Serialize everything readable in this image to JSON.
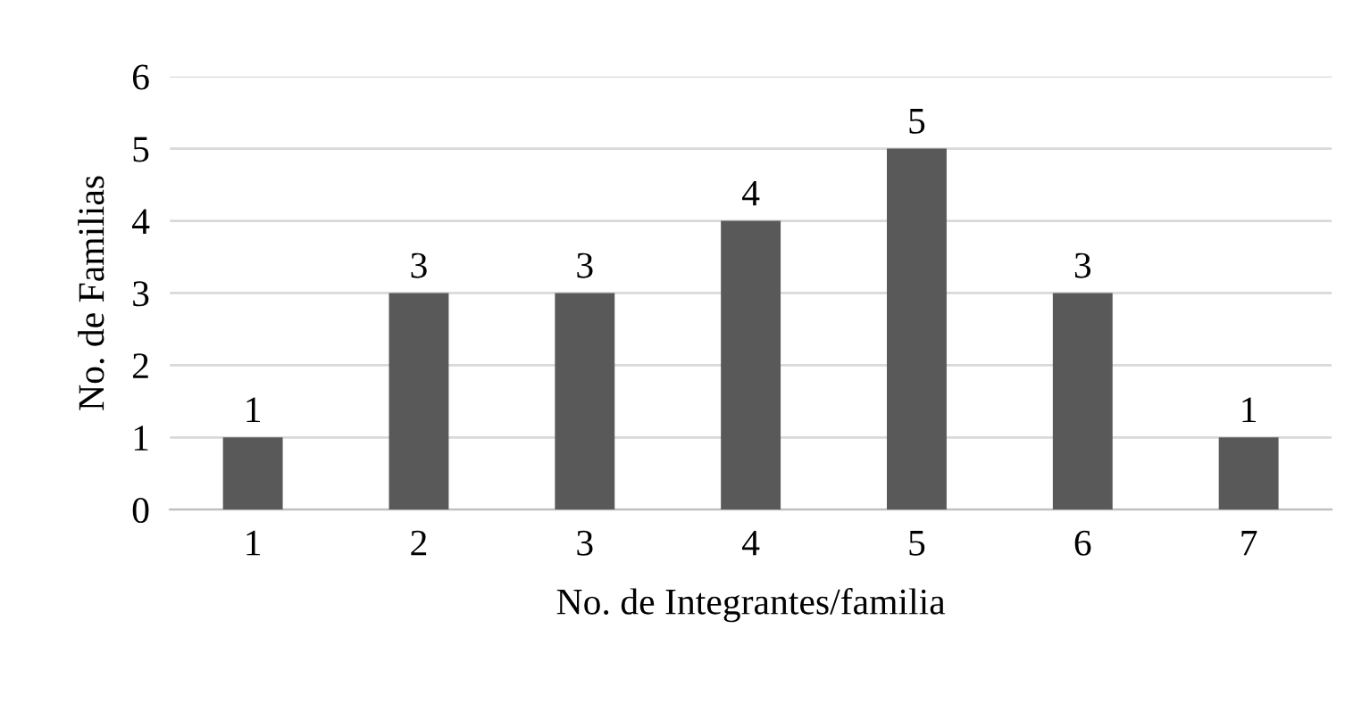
{
  "chart_data": {
    "type": "bar",
    "xlabel": "No. de Integrantes/familia",
    "ylabel": "No. de Familias",
    "categories": [
      "1",
      "2",
      "3",
      "4",
      "5",
      "6",
      "7"
    ],
    "values": [
      1,
      3,
      3,
      4,
      5,
      3,
      1
    ],
    "color": "#595959",
    "ylim": [
      0,
      6
    ],
    "yticks": [
      0,
      1,
      2,
      3,
      4,
      5,
      6
    ],
    "grid": "y",
    "data_labels": true,
    "legend": false
  }
}
